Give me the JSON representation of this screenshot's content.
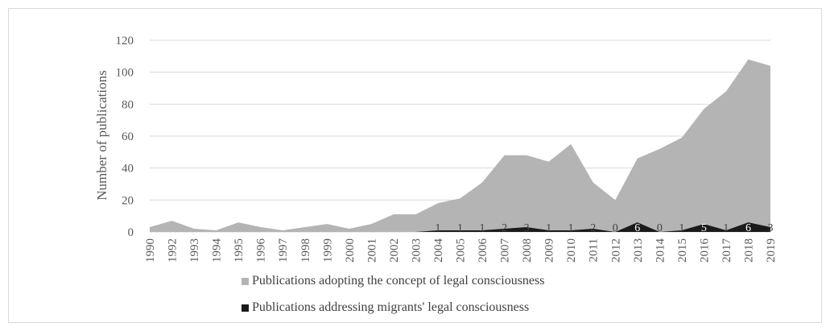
{
  "chart_data": {
    "type": "area",
    "title": "",
    "xlabel": "",
    "ylabel": "Number of publications",
    "ylim": [
      0,
      120
    ],
    "yticks": [
      0,
      20,
      40,
      60,
      80,
      100,
      120
    ],
    "grid": true,
    "legend_position": "bottom",
    "categories": [
      "1990",
      "1992",
      "1993",
      "1994",
      "1995",
      "1996",
      "1997",
      "1998",
      "1999",
      "2000",
      "2001",
      "2002",
      "2003",
      "2004",
      "2005",
      "2006",
      "2007",
      "2008",
      "2009",
      "2010",
      "2011",
      "2012",
      "2013",
      "2014",
      "2015",
      "2016",
      "2017",
      "2018",
      "2019"
    ],
    "series": [
      {
        "name": "Publications adopting the concept of legal consciousness",
        "color": "#b4b4b4",
        "values": [
          3,
          7,
          2,
          1,
          6,
          3,
          1,
          3,
          5,
          2,
          5,
          11,
          11,
          18,
          21,
          31,
          48,
          48,
          44,
          55,
          31,
          20,
          46,
          52,
          59,
          77,
          88,
          108,
          104
        ]
      },
      {
        "name": "Publications addressing migrants' legal consciousness",
        "color": "#1a1a1a",
        "values": [
          0,
          0,
          0,
          0,
          0,
          0,
          0,
          0,
          0,
          0,
          0,
          0,
          0,
          1,
          1,
          1,
          2,
          3,
          1,
          1,
          2,
          0,
          6,
          0,
          1,
          5,
          1,
          6,
          3
        ],
        "data_labels": [
          "",
          "",
          "",
          "",
          "",
          "",
          "",
          "",
          "",
          "",
          "",
          "",
          "",
          "1",
          "1",
          "1",
          "2",
          "3",
          "1",
          "1",
          "2",
          "0",
          "6",
          "0",
          "1",
          "5",
          "1",
          "6",
          "3"
        ]
      }
    ]
  }
}
